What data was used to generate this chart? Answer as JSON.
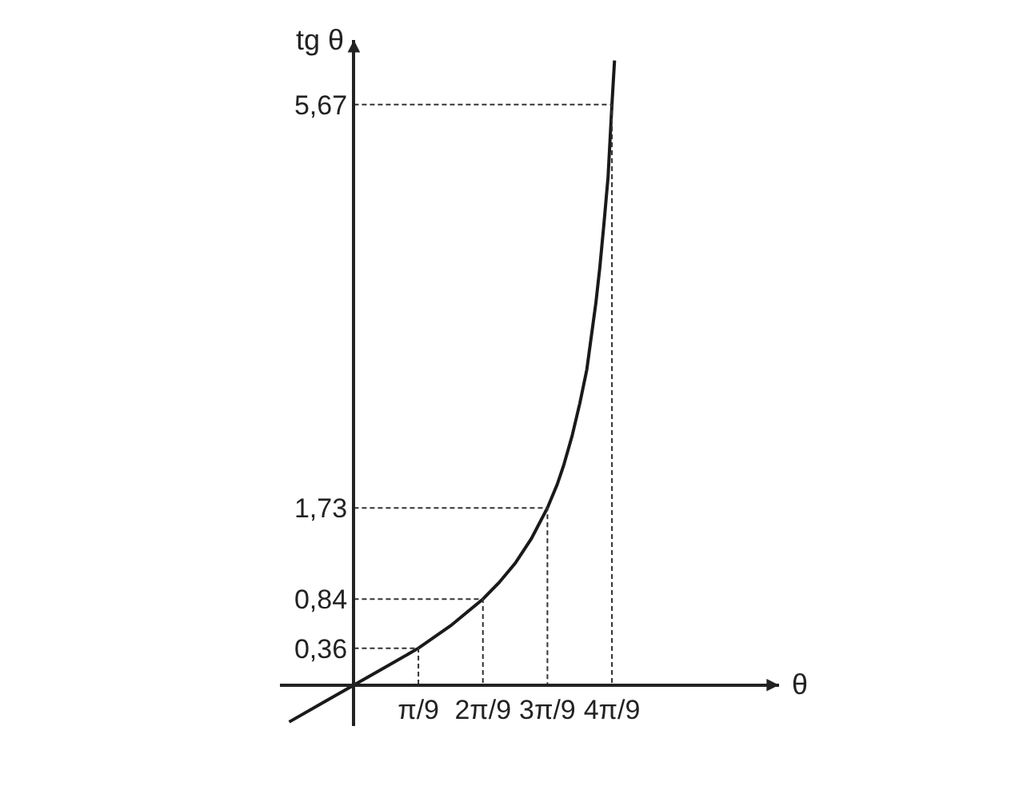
{
  "chart_data": {
    "type": "line",
    "xlabel": "θ",
    "ylabel": "tg θ",
    "x": [
      -0.35,
      -0.175,
      0,
      0.175,
      0.349,
      0.524,
      0.698,
      0.785,
      0.873,
      0.96,
      1.047,
      1.1,
      1.134,
      1.18,
      1.222,
      1.26,
      1.309,
      1.33,
      1.353,
      1.375,
      1.396,
      1.41
    ],
    "series": [
      {
        "color": "#1a1a1a",
        "values": [
          -0.36,
          -0.18,
          0,
          0.18,
          0.36,
          0.58,
          0.84,
          1.0,
          1.19,
          1.43,
          1.73,
          1.96,
          2.14,
          2.43,
          2.75,
          3.08,
          3.73,
          4.07,
          4.51,
          4.96,
          5.67,
          6.1
        ]
      },
      {
        "color": "#333333",
        "line_style": "dashed",
        "x": [
          0,
          0.349,
          0.349
        ],
        "values": [
          0.36,
          0.36,
          0
        ]
      },
      {
        "color": "#333333",
        "line_style": "dashed",
        "x": [
          0,
          0.698,
          0.698
        ],
        "values": [
          0.84,
          0.84,
          0
        ]
      },
      {
        "color": "#333333",
        "line_style": "dashed",
        "x": [
          0,
          1.047,
          1.047
        ],
        "values": [
          1.73,
          1.73,
          0
        ]
      },
      {
        "color": "#333333",
        "line_style": "dashed",
        "x": [
          0,
          1.396,
          1.396
        ],
        "values": [
          5.67,
          5.67,
          0
        ]
      }
    ],
    "xlim": [
      -0.4,
      2.3
    ],
    "ylim": [
      -0.4,
      6.3
    ],
    "xticks": [
      {
        "value": 0.349,
        "label": "π/9"
      },
      {
        "value": 0.698,
        "label": "2π/9"
      },
      {
        "value": 1.047,
        "label": "3π/9"
      },
      {
        "value": 1.396,
        "label": "4π/9"
      }
    ],
    "yticks": [
      {
        "value": 0.36,
        "label": "0,36"
      },
      {
        "value": 0.84,
        "label": "0,84"
      },
      {
        "value": 1.73,
        "label": "1,73"
      },
      {
        "value": 5.67,
        "label": "5,67"
      }
    ],
    "marker": "none",
    "line_style": "solid"
  }
}
